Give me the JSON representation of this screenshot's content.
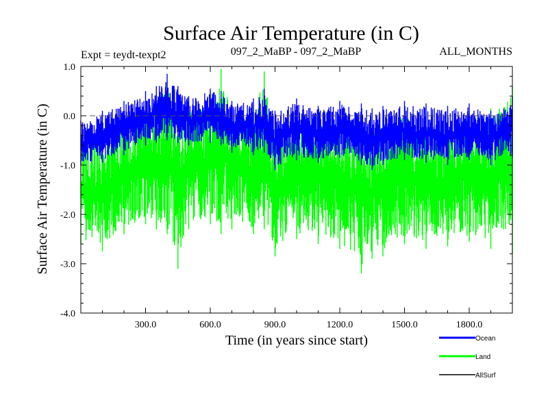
{
  "chart_data": {
    "type": "line",
    "title": "Surface Air Temperature (in C)",
    "subtitle_left": "Expt = teydt-texpt2",
    "subtitle_center": "097_2_MaBP - 097_2_MaBP",
    "subtitle_right": "ALL_MONTHS",
    "xlabel": "Time (in years since start)",
    "ylabel": "Surface Air Temperature (in C)",
    "xlim": [
      0,
      2000
    ],
    "ylim": [
      -4.0,
      1.0
    ],
    "xticks": [
      300,
      600,
      900,
      1200,
      1500,
      1800
    ],
    "xtick_labels": [
      "300.0",
      "600.0",
      "900.0",
      "1200.0",
      "1500.0",
      "1800.0"
    ],
    "yticks": [
      1.0,
      0.0,
      -1.0,
      -2.0,
      -3.0,
      -4.0
    ],
    "ytick_labels": [
      "1.0",
      "0.0",
      "-1.0",
      "-2.0",
      "-3.0",
      "-4.0"
    ],
    "reference_line": 0.0,
    "series": [
      {
        "name": "Ocean",
        "color": "#0000ff",
        "x": [
          0,
          100,
          200,
          300,
          350,
          400,
          450,
          500,
          600,
          650,
          700,
          800,
          850,
          900,
          1000,
          1100,
          1200,
          1300,
          1350,
          1400,
          1500,
          1600,
          1700,
          1800,
          1900,
          2000
        ],
        "upper": [
          -0.1,
          0.1,
          0.3,
          0.5,
          0.6,
          0.85,
          0.6,
          0.4,
          0.55,
          0.5,
          0.3,
          0.35,
          0.55,
          0.1,
          0.35,
          0.2,
          0.3,
          0.25,
          0.15,
          0.2,
          0.3,
          0.25,
          0.2,
          0.25,
          0.1,
          0.4
        ],
        "lower": [
          -1.0,
          -0.95,
          -0.8,
          -0.6,
          -0.55,
          -0.5,
          -0.55,
          -0.6,
          -0.55,
          -0.6,
          -0.75,
          -0.8,
          -0.75,
          -1.1,
          -0.9,
          -0.95,
          -0.85,
          -1.0,
          -1.1,
          -1.0,
          -0.9,
          -0.95,
          -1.0,
          -0.9,
          -1.0,
          -0.85
        ]
      },
      {
        "name": "Land",
        "color": "#00ff00",
        "x": [
          0,
          100,
          200,
          300,
          350,
          400,
          450,
          500,
          600,
          650,
          700,
          800,
          850,
          900,
          1000,
          1100,
          1200,
          1300,
          1350,
          1400,
          1500,
          1600,
          1700,
          1800,
          1900,
          2000
        ],
        "upper": [
          -0.4,
          -0.2,
          0.1,
          0.2,
          0.45,
          0.7,
          0.45,
          0.25,
          0.5,
          0.95,
          0.2,
          0.2,
          0.9,
          -0.2,
          0.1,
          0.0,
          0.1,
          0.05,
          -0.05,
          0.0,
          0.1,
          0.05,
          0.0,
          0.1,
          0.15,
          0.6
        ],
        "lower": [
          -2.6,
          -2.75,
          -2.4,
          -2.2,
          -2.3,
          -2.4,
          -3.1,
          -2.3,
          -2.2,
          -2.4,
          -2.3,
          -2.4,
          -2.3,
          -2.85,
          -2.5,
          -2.6,
          -2.7,
          -3.2,
          -2.9,
          -2.85,
          -2.6,
          -2.7,
          -2.65,
          -2.55,
          -2.7,
          -2.8
        ]
      },
      {
        "name": "AllSurf",
        "color": "#000000",
        "x": [],
        "upper": [],
        "lower": []
      }
    ]
  }
}
